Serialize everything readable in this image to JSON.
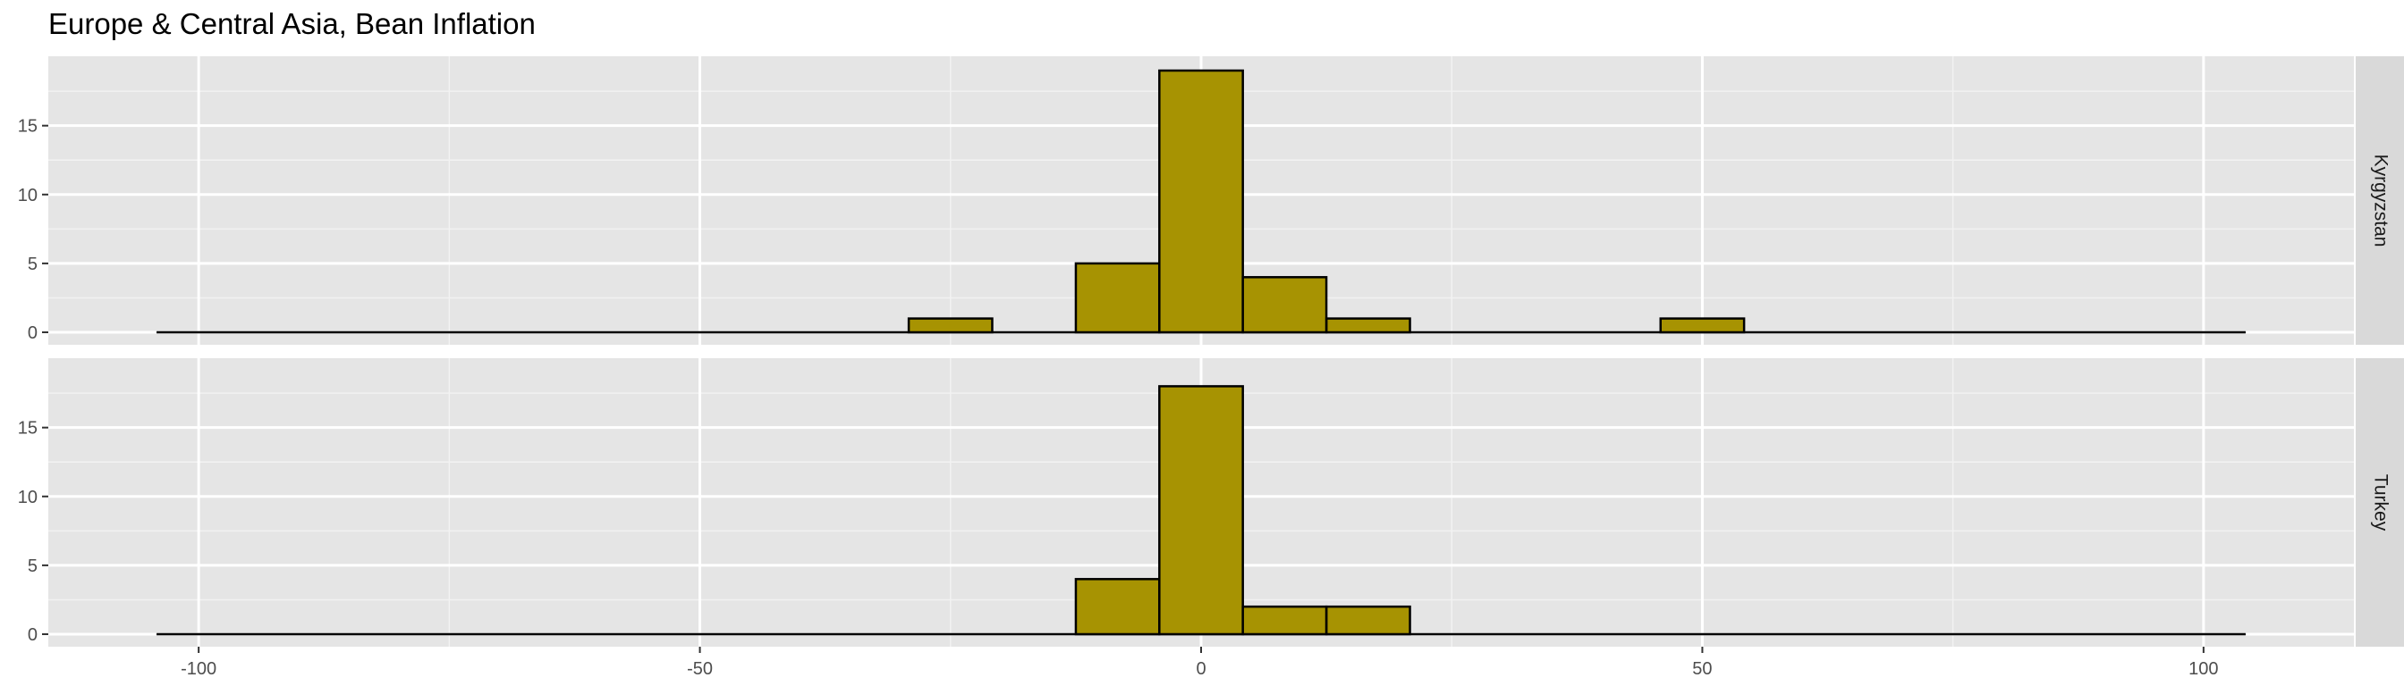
{
  "chart_data": {
    "type": "bar",
    "title": "Europe & Central Asia, Bean Inflation",
    "xlabel": "",
    "ylabel": "",
    "xlim": [
      -115,
      115
    ],
    "ylim": [
      0,
      19
    ],
    "x_ticks": [
      -100,
      -50,
      0,
      50,
      100
    ],
    "y_ticks": [
      0,
      5,
      10,
      15
    ],
    "grid": true,
    "bin_width": 8.33,
    "baseline_range": [
      -104.2,
      104.2
    ],
    "colors": {
      "fill": "#A79302",
      "outline": "#000000",
      "panel": "#E5E5E5",
      "strip": "#D9D9D9"
    },
    "panels": [
      {
        "name": "Kyrgyzstan",
        "bins": [
          {
            "x": -25.0,
            "y": 1
          },
          {
            "x": -8.33,
            "y": 5
          },
          {
            "x": 0.0,
            "y": 19
          },
          {
            "x": 8.33,
            "y": 4
          },
          {
            "x": 16.67,
            "y": 1
          },
          {
            "x": 50.0,
            "y": 1
          }
        ]
      },
      {
        "name": "Turkey",
        "bins": [
          {
            "x": -8.33,
            "y": 4
          },
          {
            "x": 0.0,
            "y": 18
          },
          {
            "x": 8.33,
            "y": 2
          },
          {
            "x": 16.67,
            "y": 2
          }
        ]
      }
    ]
  }
}
